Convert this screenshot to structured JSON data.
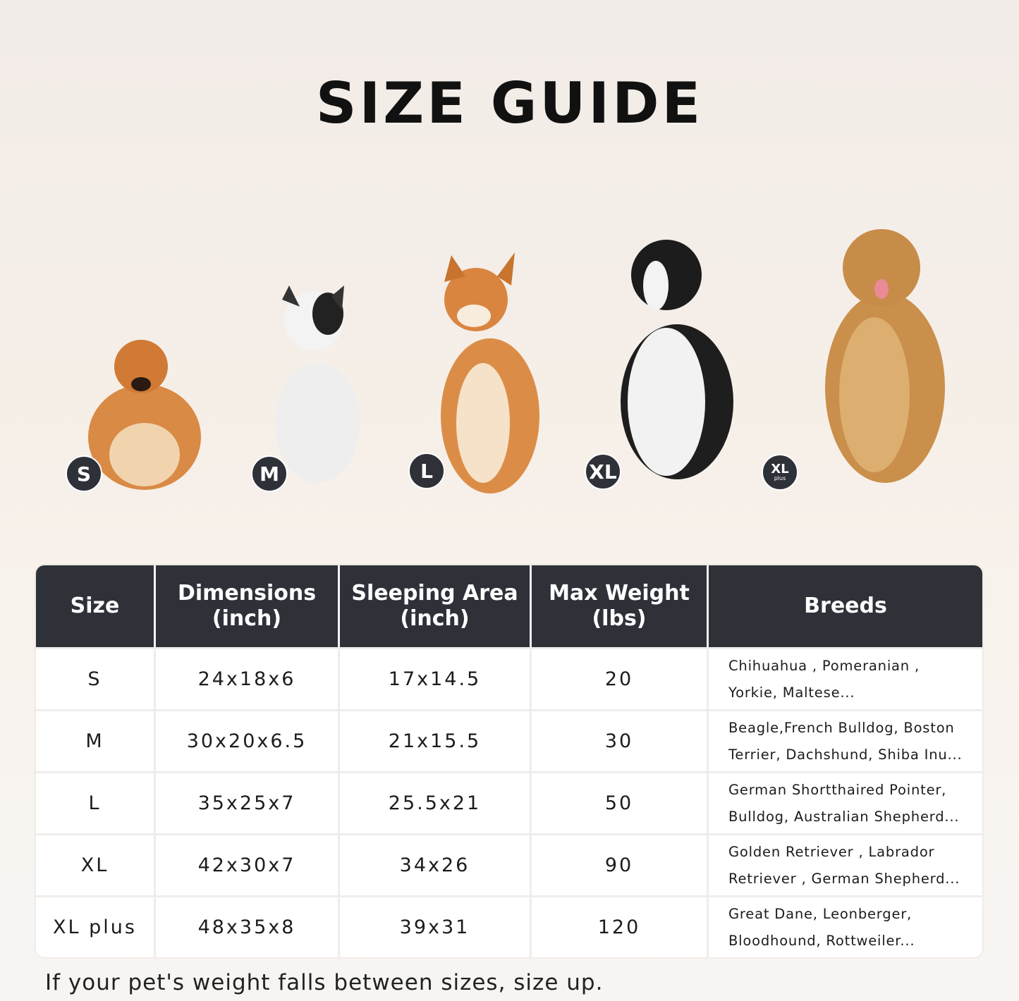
{
  "title": "SIZE GUIDE",
  "badges": [
    {
      "label": "S"
    },
    {
      "label": "M"
    },
    {
      "label": "L"
    },
    {
      "label": "XL"
    },
    {
      "label": "XL",
      "sub": "plus"
    }
  ],
  "table": {
    "headers": [
      {
        "line1": "Size",
        "line2": ""
      },
      {
        "line1": "Dimensions",
        "line2": "(inch)"
      },
      {
        "line1": "Sleeping Area",
        "line2": "(inch)"
      },
      {
        "line1": "Max Weight",
        "line2": "(lbs)"
      },
      {
        "line1": "Breeds",
        "line2": ""
      }
    ],
    "rows": [
      {
        "size": "S",
        "dimensions": "24x18x6",
        "sleeping_area": "17x14.5",
        "max_weight": "20",
        "breeds_1": "Chihuahua , Pomeranian ,",
        "breeds_2": "Yorkie, Maltese..."
      },
      {
        "size": "M",
        "dimensions": "30x20x6.5",
        "sleeping_area": "21x15.5",
        "max_weight": "30",
        "breeds_1": "Beagle,French Bulldog, Boston",
        "breeds_2": "Terrier, Dachshund, Shiba Inu..."
      },
      {
        "size": "L",
        "dimensions": "35x25x7",
        "sleeping_area": "25.5x21",
        "max_weight": "50",
        "breeds_1": "German Shortthaired Pointer,",
        "breeds_2": "Bulldog, Australian Shepherd..."
      },
      {
        "size": "XL",
        "dimensions": "42x30x7",
        "sleeping_area": "34x26",
        "max_weight": "90",
        "breeds_1": "Golden Retriever , Labrador",
        "breeds_2": "Retriever , German Shepherd..."
      },
      {
        "size": "XL plus",
        "dimensions": "48x35x8",
        "sleeping_area": "39x31",
        "max_weight": "120",
        "breeds_1": "Great Dane, Leonberger,",
        "breeds_2": "Bloodhound, Rottweiler..."
      }
    ]
  },
  "note": "If your pet's weight falls between sizes, size up.",
  "colors": {
    "header_bg": "#2f3139",
    "badge_bg": "#2f3138"
  }
}
